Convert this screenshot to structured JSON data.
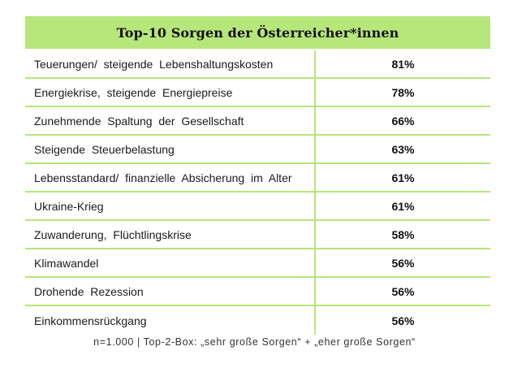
{
  "table": {
    "title": "Top-10 Sorgen der Österreicher*innen",
    "rows": [
      {
        "label": "Teuerungen/  steigende  Lebenshaltungskosten",
        "value": "81%"
      },
      {
        "label": "Energiekrise,  steigende  Energiepreise",
        "value": "78%"
      },
      {
        "label": "Zunehmende  Spaltung  der  Gesellschaft",
        "value": "66%"
      },
      {
        "label": "Steigende  Steuerbelastung",
        "value": "63%"
      },
      {
        "label": "Lebensstandard/  finanzielle  Absicherung  im  Alter",
        "value": "61%"
      },
      {
        "label": "Ukraine-Krieg",
        "value": "61%"
      },
      {
        "label": "Zuwanderung,  Flüchtlingskrise",
        "value": "58%"
      },
      {
        "label": "Klimawandel",
        "value": "56%"
      },
      {
        "label": "Drohende  Rezession",
        "value": "56%"
      },
      {
        "label": "Einkommensrückgang",
        "value": "56%"
      }
    ],
    "footnote": "n=1.000 | Top-2-Box: „sehr große Sorgen“ + „eher große Sorgen“"
  },
  "colors": {
    "header_bg": "#b7e67a",
    "grid_lines": "#b7e67a"
  },
  "chart_data": {
    "type": "table",
    "title": "Top-10 Sorgen der Österreicher*innen",
    "categories": [
      "Teuerungen/ steigende Lebenshaltungskosten",
      "Energiekrise, steigende Energiepreise",
      "Zunehmende Spaltung der Gesellschaft",
      "Steigende Steuerbelastung",
      "Lebensstandard/ finanzielle Absicherung im Alter",
      "Ukraine-Krieg",
      "Zuwanderung, Flüchtlingskrise",
      "Klimawandel",
      "Drohende Rezession",
      "Einkommensrückgang"
    ],
    "values": [
      81,
      78,
      66,
      63,
      61,
      61,
      58,
      56,
      56,
      56
    ],
    "unit": "%",
    "note": "n=1.000 | Top-2-Box: „sehr große Sorgen“ + „eher große Sorgen“"
  }
}
